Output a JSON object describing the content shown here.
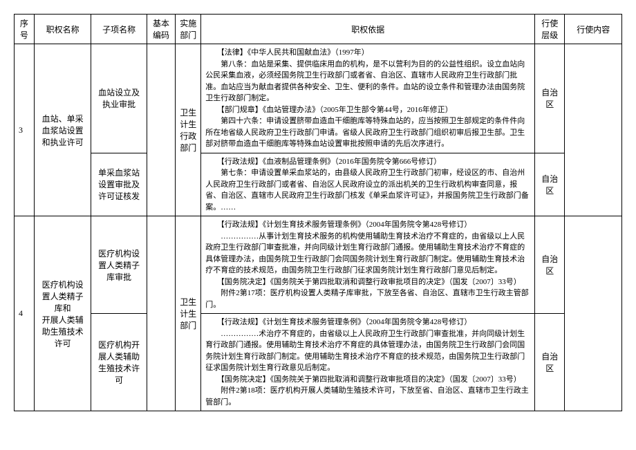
{
  "headers": {
    "seq": "序号",
    "name": "职权名称",
    "sub": "子项名称",
    "code": "基本编码",
    "dept": "实施部门",
    "basis": "职权依据",
    "level": "行使层级",
    "content": "行使内容"
  },
  "rows": [
    {
      "seq": "3",
      "name": "血站、单采血浆站设置和执业许可",
      "dept": "卫生计生行政部门",
      "subs": [
        {
          "sub": "血站设立及执业审批",
          "basis": "　　【法律】《中华人民共和国献血法》（1997年）\n　　第八条：血站是采集、提供临床用血的机构，是不以营利为目的的公益性组织。设立血站向公民采集血液，必须经国务院卫生行政部门或者省、自治区、直辖市人民政府卫生行政部门批准。血站应当为献血者提供各种安全、卫生、便利的条件。血站的设立条件和管理办法由国务院卫生行政部门制定。\n　　【部门规章】《血站管理办法》（2005年卫生部令第44号，2016年修正）\n　　第四十六条：申请设置脐带血造血干细胞库等特殊血站的，应当按照卫生部规定的条件件向所在地省级人民政府卫生行政部门申请。省级人民政府卫生行政部门组织初审后报卫生部。卫生部对脐带血造血干细胞库等特殊血站设置审批按照申请的先后次序进行。",
          "level": "自治区"
        },
        {
          "sub": "单采血浆站设置审批及许可证核发",
          "basis": "　　【行政法规】《血液制品管理条例》（2016年国务院令第666号修订）\n　　第七条：申请设置单采血浆站的，由县级人民政府卫生行政部门初审，经设区的市、自治州人民政府卫生行政部门或者省、自治区人民政府设立的派出机关的卫生行政机构审查同意，报省、自治区、直辖市人民政府卫生行政部门核发《单采血浆许可证》，并报国务院卫生行政部门备案。……",
          "level": "自治区"
        }
      ]
    },
    {
      "seq": "4",
      "name": "医疗机构设置人类精子库和\n开展人类辅助生殖技术许可",
      "dept": "卫生计生\n部门",
      "subs": [
        {
          "sub": "医疗机构设置人类精子库审批",
          "basis": "　　【行政法规】《计划生育技术服务管理条例》（2004年国务院令第428号修订）\n　　……………从事计划生育技术服务的机构使用辅助生育技术治疗不育症的，由省级以上人民政府卫生行政部门审查批准，并向同级计划生育行政部门通报。使用辅助生育技术治疗不育症的具体管理办法，由国务院卫生行政部门会同国务院计划生育行政部门制定。使用辅助生育技术治疗不育症的技术规范，由国务院卫生行政部门征求国务院计划生育行政部门意见后制定。\n　　【国务院决定】《国务院关于第四批取消和调整行政审批项目的决定》（国发〔2007〕33号）\n　　附件2第17项：医疗机构设置人类精子库审批，下放至各省、自治区、直辖市卫生行政主管部门。",
          "level": "自治区"
        },
        {
          "sub": "医疗机构开展人类辅助生殖技术许可",
          "basis": "　　【行政法规】《计划生育技术服务管理条例》（2004年国务院令第428号修订）\n　　……………术治疗不育症的，由省级以上人民政府卫生行政部门审查批准，并向同级计划生育行政部门通报。使用辅助生育技术治疗不育症的具体管理办法，由国务院卫生行政部门会同国务院计划生育行政部门制定。使用辅助生育技术治疗不育症的技术规范，由国务院卫生行政部门征求国务院计划生育行政意见后制定。\n　　【国务院决定】《国务院关于第四批取消和调整行政审批项目的决定》（国发〔2007〕33号）\n　　附件2第18项：医疗机构开展人类辅助生殖技术许可，下放至省、自治区、直辖市卫生行政主管部门。",
          "level": "自治区"
        }
      ]
    }
  ]
}
